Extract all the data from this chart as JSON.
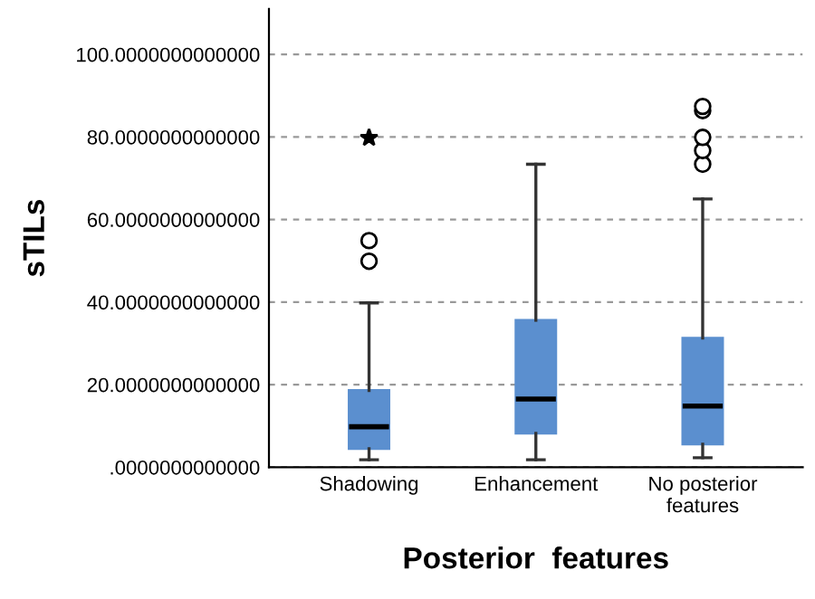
{
  "chart_data": {
    "type": "box",
    "xlabel": "Posterior  features",
    "ylabel": "sTILs",
    "categories": [
      "Shadowing",
      "Enhancement",
      "No posterior\nfeatures"
    ],
    "boxes": [
      {
        "low": 1.8,
        "q1": 4.5,
        "median": 9.8,
        "q3": 18.6,
        "high": 39.8,
        "outliers": [
          49.9,
          54.9,
          79.8
        ]
      },
      {
        "low": 1.8,
        "q1": 8.2,
        "median": 16.5,
        "q3": 35.6,
        "high": 73.4
      },
      {
        "low": 2.3,
        "q1": 5.6,
        "median": 14.8,
        "q3": 31.3,
        "high": 65.0,
        "outliers": [
          73.4,
          76.7,
          79.9,
          86.4,
          87.4
        ]
      }
    ],
    "color": "#5b8fcf",
    "ylim": [
      0,
      111
    ],
    "yticks": [
      {
        "value": 0,
        "label": ".0000000000000"
      },
      {
        "value": 20,
        "label": "20.0000000000000"
      },
      {
        "value": 40,
        "label": "40.0000000000000"
      },
      {
        "value": 60,
        "label": "60.0000000000000"
      },
      {
        "value": 80,
        "label": "80.0000000000000"
      },
      {
        "value": 100,
        "label": "100.0000000000000"
      }
    ],
    "grid": "y"
  }
}
